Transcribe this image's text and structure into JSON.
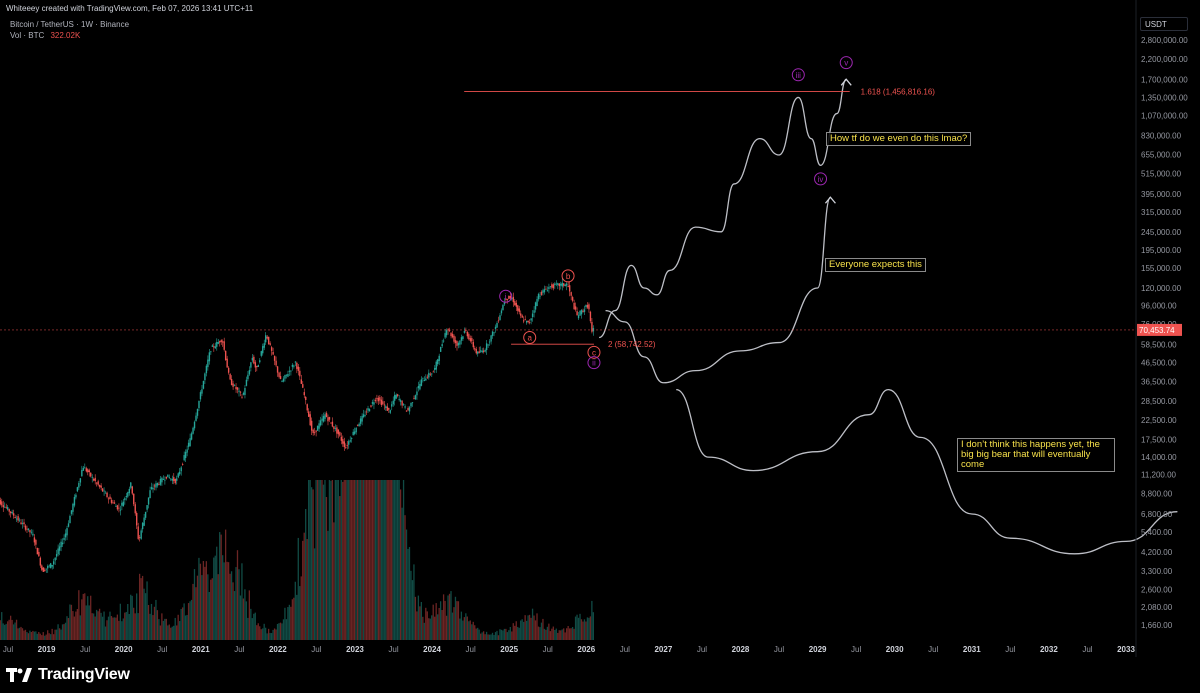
{
  "header": {
    "attribution": "Whiteeey created with TradingView.com, Feb 07, 2026 13:41 UTC+11",
    "symbol": "Bitcoin / TetherUS · 1W · Binance",
    "volume_label": "Vol · BTC",
    "volume_value": "322.02K",
    "currency": "USDT"
  },
  "footer": {
    "brand": "TradingView"
  },
  "colors": {
    "up": "#26a69a",
    "down": "#ef5350",
    "projection": "#d1d4dc",
    "fib": "#ef5350",
    "wave": "#9c27b0",
    "note_text": "#f7e14b"
  },
  "annotations": {
    "note_parabolic": "How tf do we even do this lmao?",
    "note_expected": "Everyone expects this",
    "note_bear": "I don’t think this happens yet, the big big bear that will eventually come"
  },
  "chart_data": {
    "type": "candlestick",
    "scale": "log",
    "y_axis_ticks": [
      "2,800,000.00",
      "2,200,000.00",
      "1,700,000.00",
      "1,350,000.00",
      "1,070,000.00",
      "830,000.00",
      "655,000.00",
      "515,000.00",
      "395,000.00",
      "315,000.00",
      "245,000.00",
      "195,000.00",
      "155,000.00",
      "120,000.00",
      "96,000.00",
      "76,000.00",
      "58,500.00",
      "46,500.00",
      "36,500.00",
      "28,500.00",
      "22,500.00",
      "17,500.00",
      "14,000.00",
      "11,200.00",
      "8,800.00",
      "6,800.00",
      "5,400.00",
      "4,200.00",
      "3,300.00",
      "2,600.00",
      "2,080.00",
      "1,660.00"
    ],
    "x_axis_ticks": [
      "Jul",
      "2019",
      "Jul",
      "2020",
      "Jul",
      "2021",
      "Jul",
      "2022",
      "Jul",
      "2023",
      "Jul",
      "2024",
      "Jul",
      "2025",
      "Jul",
      "2026",
      "Jul",
      "2027",
      "Jul",
      "2028",
      "Jul",
      "2029",
      "Jul",
      "2030",
      "Jul",
      "2031",
      "Jul",
      "2032",
      "Jul",
      "2033"
    ],
    "last_price": "70,453.74",
    "fib_levels": [
      {
        "label": "1.618 (1,456,816.16)",
        "price": 1456816.16
      },
      {
        "label": "2 (58,742.52)",
        "price": 58742.52
      }
    ],
    "wave_labels": [
      {
        "label": "i",
        "date": "2024-12-15",
        "price": 108000
      },
      {
        "label": "a",
        "date": "2025-04-07",
        "price": 64000
      },
      {
        "label": "b",
        "date": "2025-10-06",
        "price": 140000
      },
      {
        "label": "c",
        "date": "2026-02-07",
        "price": 53000
      },
      {
        "label": "ii",
        "date": "2026-02-07",
        "price": 46500
      },
      {
        "label": "iii",
        "date": "2028-10-01",
        "price": 1800000
      },
      {
        "label": "iv",
        "date": "2029-01-15",
        "price": 480000
      },
      {
        "label": "v",
        "date": "2029-05-15",
        "price": 2100000
      }
    ],
    "price_path": [
      [
        "2018-05-01",
        8500
      ],
      [
        "2018-08-01",
        6700
      ],
      [
        "2018-11-01",
        5200
      ],
      [
        "2018-12-15",
        3300
      ],
      [
        "2019-02-01",
        3600
      ],
      [
        "2019-04-01",
        5200
      ],
      [
        "2019-06-25",
        12500
      ],
      [
        "2019-08-15",
        10500
      ],
      [
        "2019-10-25",
        8300
      ],
      [
        "2019-12-15",
        7200
      ],
      [
        "2020-02-10",
        10000
      ],
      [
        "2020-03-15",
        4800
      ],
      [
        "2020-05-10",
        9300
      ],
      [
        "2020-07-25",
        11000
      ],
      [
        "2020-09-10",
        10300
      ],
      [
        "2020-11-15",
        17500
      ],
      [
        "2020-12-28",
        29000
      ],
      [
        "2021-02-20",
        55000
      ],
      [
        "2021-04-15",
        63000
      ],
      [
        "2021-05-20",
        37000
      ],
      [
        "2021-07-20",
        30000
      ],
      [
        "2021-09-05",
        50000
      ],
      [
        "2021-09-25",
        42000
      ],
      [
        "2021-11-10",
        67000
      ],
      [
        "2022-01-20",
        36000
      ],
      [
        "2022-03-28",
        47000
      ],
      [
        "2022-05-10",
        30000
      ],
      [
        "2022-06-18",
        18500
      ],
      [
        "2022-08-15",
        24000
      ],
      [
        "2022-10-15",
        19000
      ],
      [
        "2022-11-21",
        15800
      ],
      [
        "2023-01-15",
        21000
      ],
      [
        "2023-04-15",
        30000
      ],
      [
        "2023-06-15",
        25000
      ],
      [
        "2023-07-15",
        31000
      ],
      [
        "2023-09-10",
        25000
      ],
      [
        "2023-11-15",
        37000
      ],
      [
        "2024-01-15",
        42000
      ],
      [
        "2024-03-14",
        73000
      ],
      [
        "2024-05-01",
        58000
      ],
      [
        "2024-06-10",
        70000
      ],
      [
        "2024-08-05",
        52000
      ],
      [
        "2024-09-10",
        55000
      ],
      [
        "2024-10-30",
        72000
      ],
      [
        "2024-12-17",
        106000
      ],
      [
        "2025-01-20",
        105000
      ],
      [
        "2025-03-01",
        82000
      ],
      [
        "2025-04-07",
        76000
      ],
      [
        "2025-05-22",
        110000
      ],
      [
        "2025-07-14",
        122000
      ],
      [
        "2025-08-14",
        124000
      ],
      [
        "2025-10-06",
        126000
      ],
      [
        "2025-11-21",
        84000
      ],
      [
        "2026-01-14",
        97000
      ],
      [
        "2026-02-05",
        62000
      ],
      [
        "2026-02-07",
        70453.74
      ]
    ],
    "volume_peaks": [
      [
        "2018-06-01",
        2
      ],
      [
        "2019-06-25",
        4
      ],
      [
        "2020-03-15",
        5
      ],
      [
        "2021-01-10",
        6
      ],
      [
        "2021-05-20",
        7
      ],
      [
        "2022-06-18",
        14
      ],
      [
        "2022-11-10",
        18
      ],
      [
        "2023-03-15",
        30
      ],
      [
        "2023-06-01",
        22
      ],
      [
        "2024-03-14",
        4
      ],
      [
        "2025-04-07",
        2
      ],
      [
        "2026-02-05",
        3
      ]
    ],
    "projections": [
      {
        "name": "",
        "points": [
          [
            "2026-03-01",
            64000
          ],
          [
            "2026-05-15",
            90000
          ],
          [
            "2026-08-01",
            160000
          ],
          [
            "2026-10-01",
            120000
          ],
          [
            "2026-12-01",
            110000
          ],
          [
            "2027-02-01",
            150000
          ],
          [
            "2027-06-01",
            260000
          ],
          [
            "2027-10-01",
            245000
          ],
          [
            "2027-12-01",
            450000
          ],
          [
            "2028-04-01",
            800000
          ],
          [
            "2028-07-01",
            650000
          ],
          [
            "2028-10-01",
            1350000
          ],
          [
            "2028-12-01",
            800000
          ],
          [
            "2029-01-15",
            570000
          ],
          [
            "2029-04-01",
            1100000
          ],
          [
            "2029-05-15",
            1700000
          ]
        ]
      },
      {
        "name": "",
        "points": [
          [
            "2026-04-01",
            90000
          ],
          [
            "2026-07-01",
            78000
          ],
          [
            "2026-10-01",
            50000
          ],
          [
            "2027-01-01",
            36000
          ],
          [
            "2027-06-01",
            42000
          ],
          [
            "2028-01-01",
            54000
          ],
          [
            "2028-07-01",
            60000
          ],
          [
            "2029-01-01",
            120000
          ],
          [
            "2029-03-01",
            380000
          ]
        ]
      },
      {
        "name": "",
        "points": [
          [
            "2027-03-01",
            33000
          ],
          [
            "2027-08-01",
            14000
          ],
          [
            "2028-03-01",
            11800
          ],
          [
            "2029-01-01",
            15000
          ],
          [
            "2029-09-01",
            24000
          ],
          [
            "2029-12-01",
            33000
          ],
          [
            "2030-05-01",
            18000
          ],
          [
            "2031-01-01",
            6800
          ],
          [
            "2031-07-01",
            5000
          ],
          [
            "2032-05-01",
            4100
          ],
          [
            "2033-01-01",
            4800
          ],
          [
            "2033-09-01",
            7000
          ]
        ]
      }
    ]
  }
}
